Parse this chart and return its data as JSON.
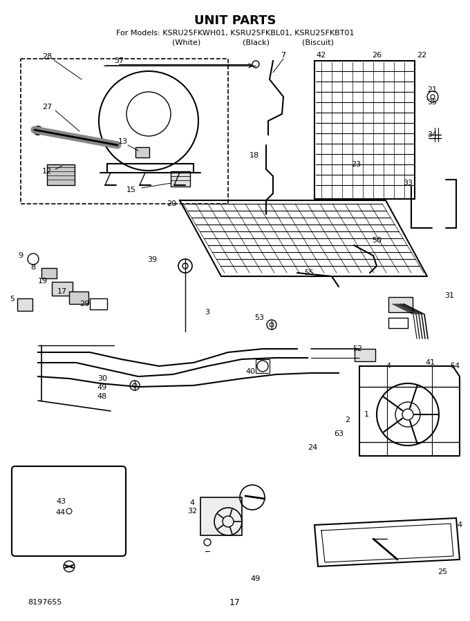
{
  "title": "UNIT PARTS",
  "subtitle_line1": "For Models: KSRU25FKWH01, KSRU25FKBL01, KSRU25FKBT01",
  "subtitle_line2a": "(White)",
  "subtitle_line2b": "(Black)",
  "subtitle_line2c": "(Biscuit)",
  "page_number": "17",
  "part_number": "8197655",
  "bg_color": "#ffffff",
  "figsize": [
    6.8,
    8.99
  ],
  "dpi": 100
}
